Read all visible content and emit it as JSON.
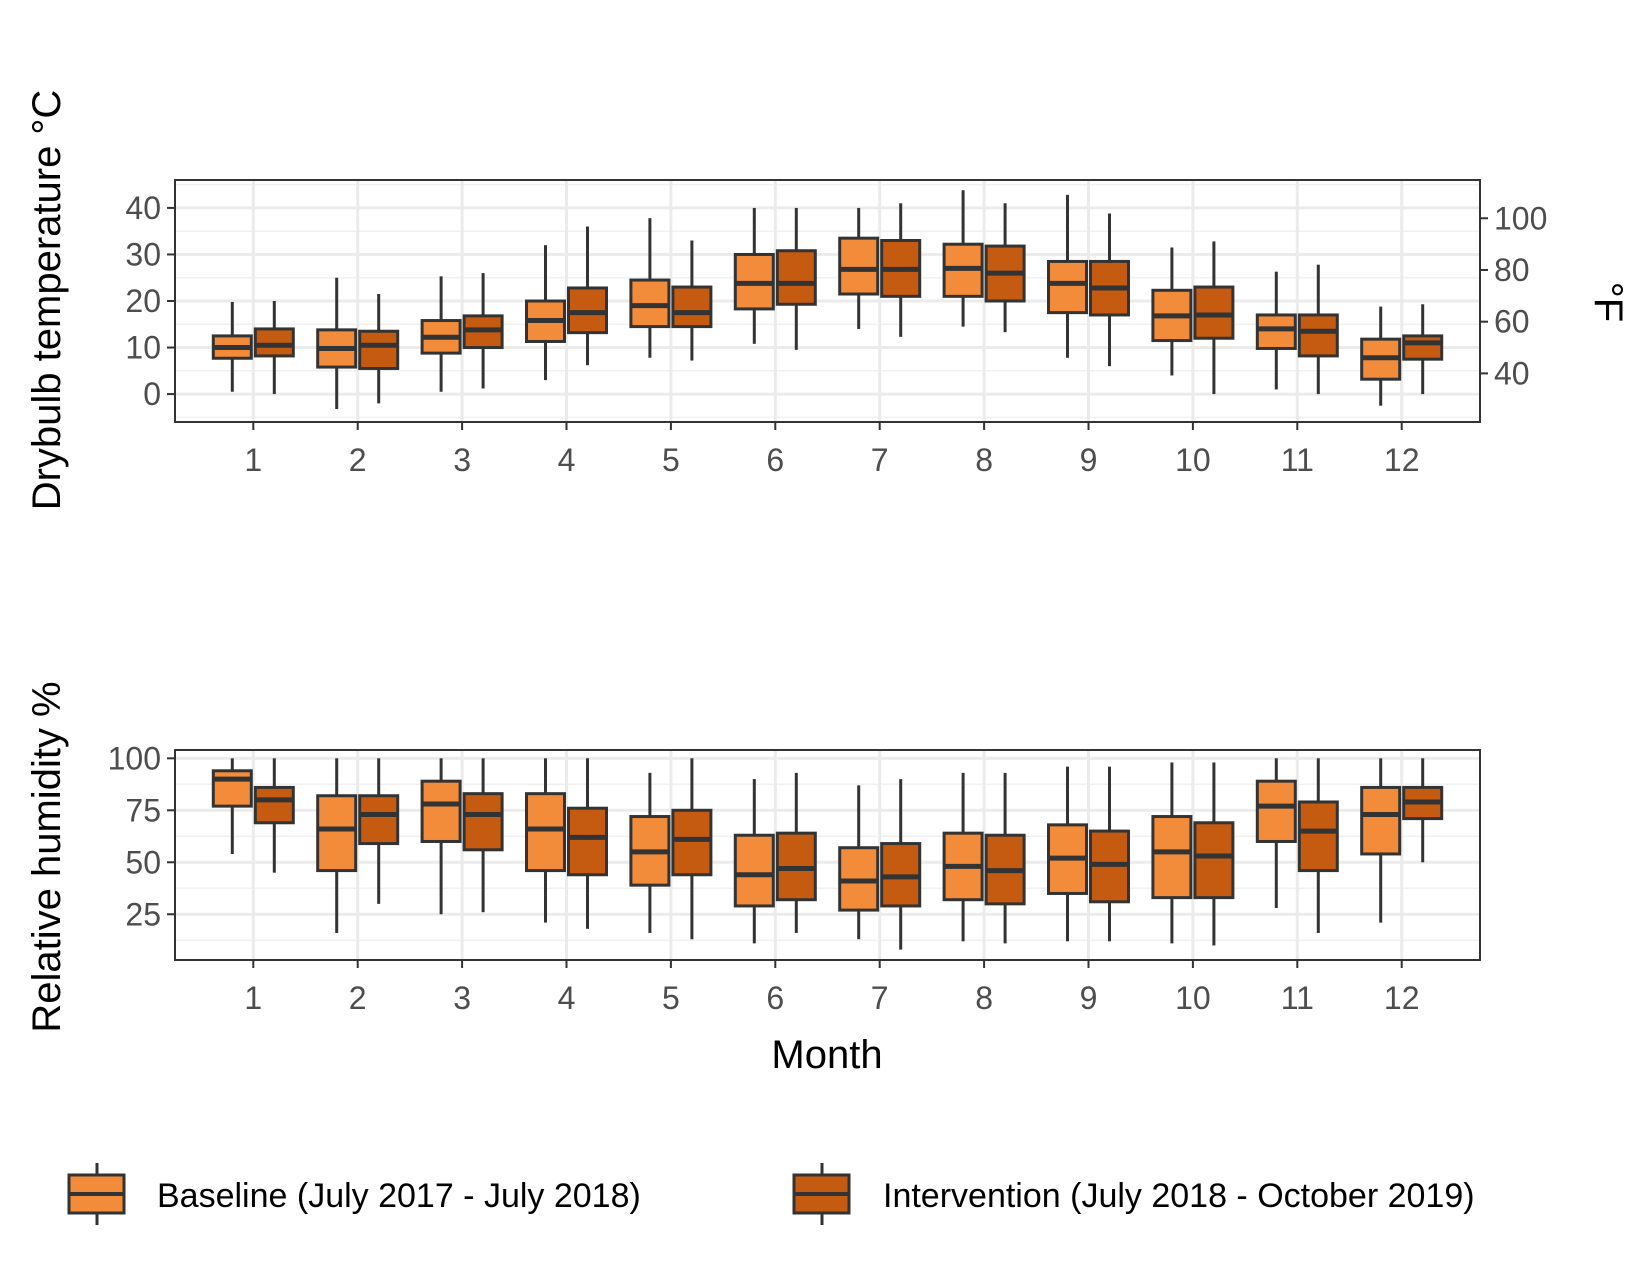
{
  "chart_data": [
    {
      "type": "box",
      "ylabel": "Drybulb temperature °C",
      "y2label": "°F",
      "xlabel": "",
      "ylim": [
        -6,
        46
      ],
      "yticks": [
        0,
        10,
        20,
        30,
        40
      ],
      "y2ticks": [
        40,
        60,
        80,
        100
      ],
      "categories": [
        "1",
        "2",
        "3",
        "4",
        "5",
        "6",
        "7",
        "8",
        "9",
        "10",
        "11",
        "12"
      ],
      "grid": true,
      "series": [
        {
          "name": "Baseline (July 2017 - July 2018)",
          "boxes": [
            {
              "min": 0.5,
              "q1": 7.7,
              "median": 10.0,
              "q3": 12.5,
              "max": 19.8
            },
            {
              "min": -3.2,
              "q1": 5.8,
              "median": 9.8,
              "q3": 13.8,
              "max": 25.0
            },
            {
              "min": 0.5,
              "q1": 8.8,
              "median": 12.2,
              "q3": 15.8,
              "max": 25.3
            },
            {
              "min": 3.0,
              "q1": 11.3,
              "median": 15.8,
              "q3": 20.0,
              "max": 32.0
            },
            {
              "min": 7.8,
              "q1": 14.5,
              "median": 19.0,
              "q3": 24.5,
              "max": 37.8
            },
            {
              "min": 10.8,
              "q1": 18.3,
              "median": 23.8,
              "q3": 30.0,
              "max": 40.0
            },
            {
              "min": 14.0,
              "q1": 21.5,
              "median": 26.8,
              "q3": 33.5,
              "max": 40.0
            },
            {
              "min": 14.5,
              "q1": 21.0,
              "median": 27.0,
              "q3": 32.2,
              "max": 43.8
            },
            {
              "min": 7.8,
              "q1": 17.5,
              "median": 23.8,
              "q3": 28.5,
              "max": 42.8
            },
            {
              "min": 4.0,
              "q1": 11.5,
              "median": 16.8,
              "q3": 22.3,
              "max": 31.5
            },
            {
              "min": 1.0,
              "q1": 9.8,
              "median": 14.0,
              "q3": 17.0,
              "max": 26.3
            },
            {
              "min": -2.5,
              "q1": 3.2,
              "median": 7.8,
              "q3": 11.8,
              "max": 18.8
            }
          ]
        },
        {
          "name": "Intervention (July 2018 - October 2019)",
          "boxes": [
            {
              "min": 0.0,
              "q1": 8.2,
              "median": 10.5,
              "q3": 14.0,
              "max": 20.0
            },
            {
              "min": -2.0,
              "q1": 5.5,
              "median": 10.5,
              "q3": 13.5,
              "max": 21.5
            },
            {
              "min": 1.2,
              "q1": 10.0,
              "median": 13.8,
              "q3": 16.8,
              "max": 26.0
            },
            {
              "min": 6.2,
              "q1": 13.2,
              "median": 17.5,
              "q3": 22.8,
              "max": 36.0
            },
            {
              "min": 7.2,
              "q1": 14.5,
              "median": 17.5,
              "q3": 23.0,
              "max": 33.0
            },
            {
              "min": 9.5,
              "q1": 19.3,
              "median": 23.8,
              "q3": 30.8,
              "max": 40.0
            },
            {
              "min": 12.3,
              "q1": 21.0,
              "median": 26.8,
              "q3": 33.0,
              "max": 41.0
            },
            {
              "min": 13.3,
              "q1": 20.0,
              "median": 26.0,
              "q3": 31.8,
              "max": 41.0
            },
            {
              "min": 6.0,
              "q1": 17.0,
              "median": 22.8,
              "q3": 28.5,
              "max": 38.8
            },
            {
              "min": 0.0,
              "q1": 12.0,
              "median": 17.0,
              "q3": 23.0,
              "max": 32.8
            },
            {
              "min": 0.0,
              "q1": 8.2,
              "median": 13.5,
              "q3": 17.0,
              "max": 27.8
            },
            {
              "min": 0.0,
              "q1": 7.5,
              "median": 11.0,
              "q3": 12.5,
              "max": 19.3
            }
          ]
        }
      ]
    },
    {
      "type": "box",
      "ylabel": "Relative humidity %",
      "xlabel": "Month",
      "ylim": [
        3,
        104
      ],
      "yticks": [
        25,
        50,
        75,
        100
      ],
      "categories": [
        "1",
        "2",
        "3",
        "4",
        "5",
        "6",
        "7",
        "8",
        "9",
        "10",
        "11",
        "12"
      ],
      "grid": true,
      "series": [
        {
          "name": "Baseline (July 2017 - July 2018)",
          "boxes": [
            {
              "min": 54,
              "q1": 77,
              "median": 90,
              "q3": 94,
              "max": 100
            },
            {
              "min": 16,
              "q1": 46,
              "median": 66,
              "q3": 82,
              "max": 100
            },
            {
              "min": 25,
              "q1": 60,
              "median": 78,
              "q3": 89,
              "max": 100
            },
            {
              "min": 21,
              "q1": 46,
              "median": 66,
              "q3": 83,
              "max": 100
            },
            {
              "min": 16,
              "q1": 39,
              "median": 55,
              "q3": 72,
              "max": 93
            },
            {
              "min": 11,
              "q1": 29,
              "median": 44,
              "q3": 63,
              "max": 90
            },
            {
              "min": 13,
              "q1": 27,
              "median": 41,
              "q3": 57,
              "max": 87
            },
            {
              "min": 12,
              "q1": 32,
              "median": 48,
              "q3": 64,
              "max": 93
            },
            {
              "min": 12,
              "q1": 35,
              "median": 52,
              "q3": 68,
              "max": 96
            },
            {
              "min": 11,
              "q1": 33,
              "median": 55,
              "q3": 72,
              "max": 98
            },
            {
              "min": 28,
              "q1": 60,
              "median": 77,
              "q3": 89,
              "max": 100
            },
            {
              "min": 21,
              "q1": 54,
              "median": 73,
              "q3": 86,
              "max": 100
            }
          ]
        },
        {
          "name": "Intervention (July 2018 - October 2019)",
          "boxes": [
            {
              "min": 45,
              "q1": 69,
              "median": 80,
              "q3": 86,
              "max": 100
            },
            {
              "min": 30,
              "q1": 59,
              "median": 73,
              "q3": 82,
              "max": 100
            },
            {
              "min": 26,
              "q1": 56,
              "median": 73,
              "q3": 83,
              "max": 100
            },
            {
              "min": 18,
              "q1": 44,
              "median": 62,
              "q3": 76,
              "max": 100
            },
            {
              "min": 13,
              "q1": 44,
              "median": 61,
              "q3": 75,
              "max": 100
            },
            {
              "min": 16,
              "q1": 32,
              "median": 47,
              "q3": 64,
              "max": 93
            },
            {
              "min": 8,
              "q1": 29,
              "median": 43,
              "q3": 59,
              "max": 90
            },
            {
              "min": 11,
              "q1": 30,
              "median": 46,
              "q3": 63,
              "max": 93
            },
            {
              "min": 12,
              "q1": 31,
              "median": 49,
              "q3": 65,
              "max": 96
            },
            {
              "min": 10,
              "q1": 33,
              "median": 53,
              "q3": 69,
              "max": 98
            },
            {
              "min": 16,
              "q1": 46,
              "median": 65,
              "q3": 79,
              "max": 100
            },
            {
              "min": 50,
              "q1": 71,
              "median": 79,
              "q3": 86,
              "max": 100
            }
          ]
        }
      ]
    }
  ],
  "legend": {
    "placement": "bottom",
    "items": [
      {
        "label": "Baseline (July 2017 - July 2018)",
        "color": "#F28C3A"
      },
      {
        "label": "Intervention (July 2018 - October 2019)",
        "color": "#C55A11"
      }
    ]
  }
}
